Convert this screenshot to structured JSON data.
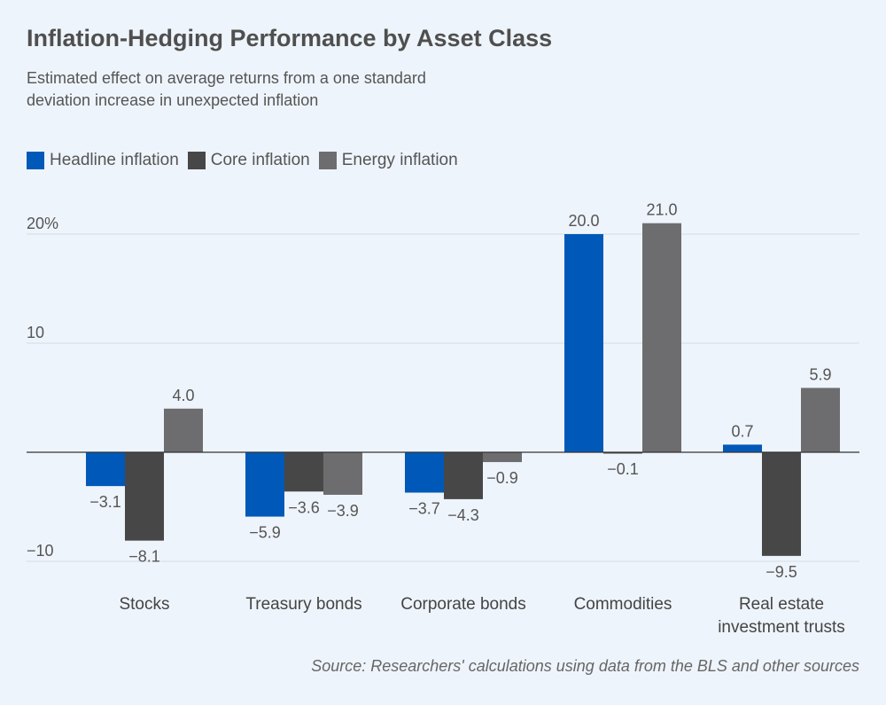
{
  "chart_data": {
    "type": "bar",
    "title": "Inflation-Hedging Performance by Asset Class",
    "subtitle": "Estimated effect on average returns from a one standard deviation increase in unexpected inflation",
    "categories": [
      [
        "Stocks"
      ],
      [
        "Treasury bonds"
      ],
      [
        "Corporate bonds"
      ],
      [
        "Commodities"
      ],
      [
        "Real estate",
        "investment trusts"
      ]
    ],
    "series": [
      {
        "name": "Headline inflation",
        "color": "#0059b9",
        "values": [
          -3.1,
          -5.9,
          -3.7,
          20.0,
          0.7
        ]
      },
      {
        "name": "Core inflation",
        "color": "#474747",
        "values": [
          -8.1,
          -3.6,
          -4.3,
          -0.1,
          -9.5
        ]
      },
      {
        "name": "Energy inflation",
        "color": "#6d6d70",
        "values": [
          4.0,
          -3.9,
          -0.9,
          21.0,
          5.9
        ]
      }
    ],
    "value_labels": [
      [
        "−3.1",
        "−5.9",
        "−3.7",
        "20.0",
        "0.7"
      ],
      [
        "−8.1",
        "−3.6",
        "−4.3",
        "−0.1",
        "−9.5"
      ],
      [
        "4.0",
        "−3.9",
        "−0.9",
        "21.0",
        "5.9"
      ]
    ],
    "yticks": [
      {
        "value": 20,
        "label": "20%"
      },
      {
        "value": 10,
        "label": "10"
      },
      {
        "value": -10,
        "label": "−10"
      }
    ],
    "ylim": [
      -10,
      21
    ],
    "grid": true,
    "legend": "top-left"
  },
  "source": "Source: Researchers' calculations using data from the BLS and other sources"
}
